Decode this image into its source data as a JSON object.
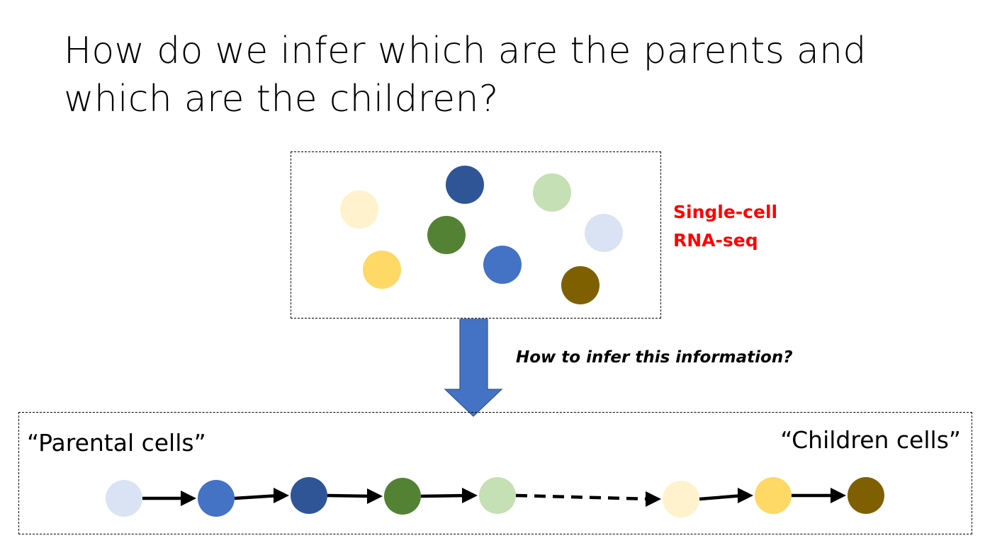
{
  "slide": {
    "title": "How do we infer which are the parents and which are the children?"
  },
  "scrna_box": {
    "label_line1": "Single-cell",
    "label_line2": "RNA-seq",
    "label_color": "#ff0000",
    "cells": [
      {
        "name": "cell-light-yellow",
        "color": "#fff2cc"
      },
      {
        "name": "cell-dark-blue",
        "color": "#2f5597"
      },
      {
        "name": "cell-light-green",
        "color": "#c5e0b4"
      },
      {
        "name": "cell-green",
        "color": "#548235"
      },
      {
        "name": "cell-pale-blue",
        "color": "#dae3f3"
      },
      {
        "name": "cell-yellow",
        "color": "#ffd966"
      },
      {
        "name": "cell-blue",
        "color": "#4472c4"
      },
      {
        "name": "cell-brown",
        "color": "#7f6000"
      }
    ]
  },
  "arrow": {
    "color": "#4472c4",
    "question": "How to infer this information?"
  },
  "trajectory": {
    "start_label": "“Parental cells”",
    "end_label": "“Children cells”",
    "cells": [
      {
        "name": "trajectory-cell-pale-blue",
        "color": "#dae3f3"
      },
      {
        "name": "trajectory-cell-blue",
        "color": "#4472c4"
      },
      {
        "name": "trajectory-cell-dark-blue",
        "color": "#2f5597"
      },
      {
        "name": "trajectory-cell-green",
        "color": "#548235"
      },
      {
        "name": "trajectory-cell-light-green",
        "color": "#c5e0b4"
      },
      {
        "name": "trajectory-cell-light-yellow",
        "color": "#fff2cc"
      },
      {
        "name": "trajectory-cell-yellow",
        "color": "#ffd966"
      },
      {
        "name": "trajectory-cell-brown",
        "color": "#7f6000"
      }
    ]
  }
}
